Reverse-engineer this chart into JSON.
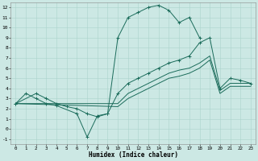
{
  "xlabel": "Humidex (Indice chaleur)",
  "background_color": "#cce8e4",
  "grid_color": "#aad4cc",
  "line_color": "#1a6b5a",
  "xlim": [
    -0.5,
    23.5
  ],
  "ylim": [
    -1.5,
    12.5
  ],
  "line1_x": [
    0,
    1,
    2,
    3,
    4,
    6,
    7,
    8,
    9,
    10,
    11,
    12,
    13,
    14,
    15,
    16,
    17,
    18
  ],
  "line1_y": [
    2.5,
    3.5,
    3.0,
    2.5,
    2.3,
    1.5,
    -0.8,
    1.3,
    1.5,
    9.0,
    11.0,
    11.5,
    12.0,
    12.2,
    11.7,
    10.5,
    11.0,
    9.0
  ],
  "line2_x": [
    0,
    2,
    3,
    4,
    5,
    6,
    7,
    8,
    9,
    10,
    11,
    12,
    13,
    14,
    15,
    16,
    17,
    18,
    19,
    20,
    21,
    22,
    23
  ],
  "line2_y": [
    2.5,
    3.5,
    3.0,
    2.5,
    2.2,
    2.0,
    1.5,
    1.2,
    1.5,
    3.5,
    4.5,
    5.0,
    5.5,
    6.0,
    6.5,
    6.8,
    7.2,
    8.5,
    9.0,
    4.0,
    5.0,
    4.8,
    4.5
  ],
  "line3_x": [
    0,
    10,
    11,
    12,
    13,
    14,
    15,
    16,
    17,
    18,
    19,
    20,
    21,
    22,
    23
  ],
  "line3_y": [
    2.5,
    2.5,
    3.5,
    4.0,
    4.5,
    5.0,
    5.5,
    5.8,
    6.0,
    6.5,
    7.2,
    3.8,
    4.5,
    4.5,
    4.5
  ],
  "line4_x": [
    0,
    10,
    11,
    12,
    13,
    14,
    15,
    16,
    17,
    18,
    19,
    20,
    21,
    22,
    23
  ],
  "line4_y": [
    2.5,
    2.2,
    3.0,
    3.5,
    4.0,
    4.5,
    5.0,
    5.2,
    5.5,
    6.0,
    6.8,
    3.5,
    4.2,
    4.2,
    4.2
  ]
}
